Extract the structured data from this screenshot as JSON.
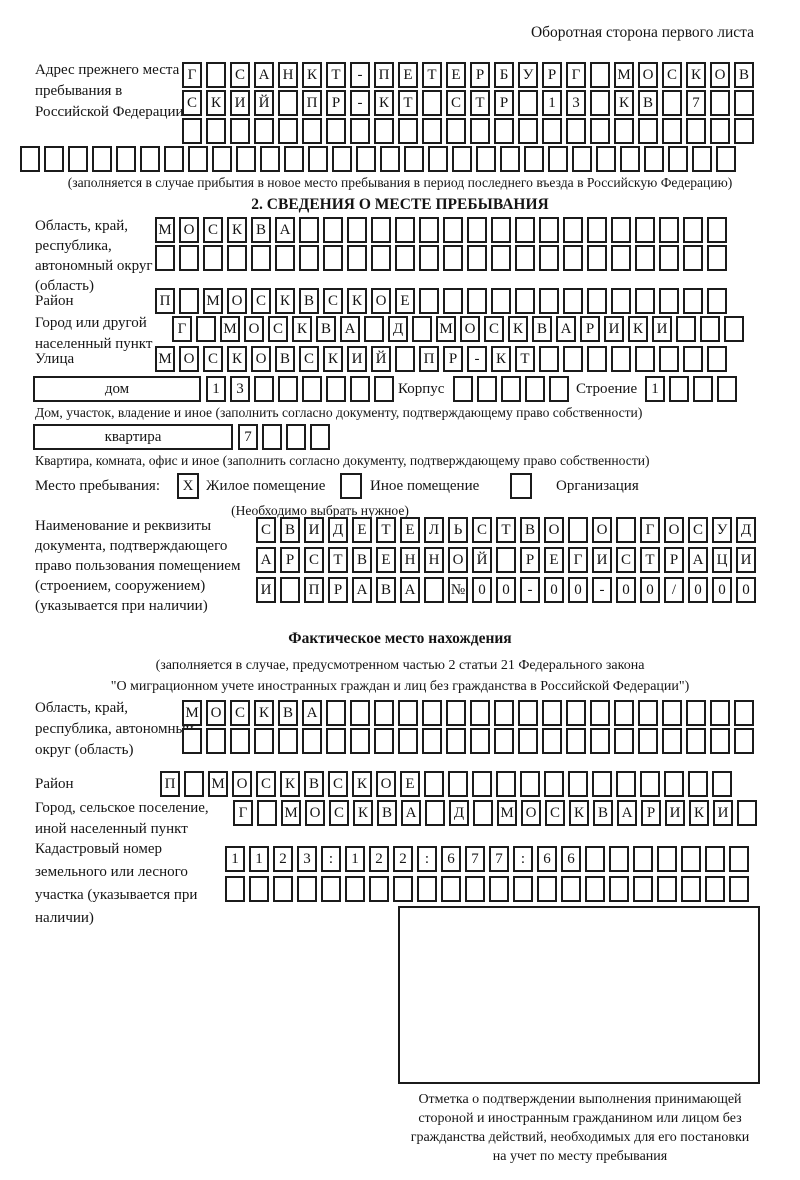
{
  "title": "Оборотная сторона первого листа",
  "prev_address": {
    "label": "Адрес прежнего места пребывания в Российской Федерации",
    "row1": "Г САНКТ-ПЕТЕРБУРГ МОСКОВ",
    "row2": "СКИЙ ПР-КТ СТР 13 КВ 7",
    "row3": "",
    "row4": "",
    "note": "(заполняется в случае прибытия в новое место пребывания в период последнего въезда в Российскую Федерацию)"
  },
  "section2": {
    "header": "2. СВЕДЕНИЯ О МЕСТЕ ПРЕБЫВАНИЯ",
    "oblast_label": "Область, край, республика, автономный округ (область)",
    "oblast_row1": "МОСКВА",
    "oblast_row2": "",
    "raion_label": "Район",
    "raion_row": "П МОСКВСКОЕ",
    "gorod_label": "Город или другой населенный пункт",
    "gorod_row": "Г МОСКВА Д МОСКВАРИКИ",
    "ulitsa_label": "Улица",
    "ulitsa_row": "МОСКОВСКИЙ ПР-КТ",
    "dom_label": "дом",
    "dom_row": "13",
    "korpus_label": "Корпус",
    "korpus_row": "",
    "stroenie_label": "Строение",
    "stroenie_row": "1",
    "dom_note": "Дом, участок, владение и иное (заполнить согласно документу, подтверждающему право собственности)",
    "kvartira_label": "квартира",
    "kvartira_row": "7",
    "kvartira_note": "Квартира, комната, офис и иное (заполнить согласно документу, подтверждающему право собственности)",
    "mesto_label": "Место пребывания:",
    "mesto_zhiloe": "Жилое помещение",
    "mesto_zhiloe_mark": "X",
    "mesto_inoe": "Иное помещение",
    "mesto_inoe_mark": "",
    "mesto_org": "Организация",
    "mesto_org_mark": "",
    "mesto_note": "(Необходимо выбрать нужное)",
    "doc_label": "Наименование и реквизиты документа, подтверждающего право пользования помещением (строением, сооружением) (указывается при наличии)",
    "doc_row1": "СВИДЕТЕЛЬСТВО О ГОСУД",
    "doc_row2": "АРСТВЕННОЙ РЕГИСТРАЦИ",
    "doc_row3": "И ПРАВА №00-00-00/000"
  },
  "fact": {
    "header": "Фактическое место нахождения",
    "note1": "(заполняется в случае, предусмотренном частью 2 статьи 21 Федерального закона",
    "note2": "\"О миграционном учете иностранных граждан и лиц без гражданства в Российской Федерации\")",
    "oblast_label": "Область, край, республика, автономный округ (область)",
    "oblast_row1": "МОСКВА",
    "oblast_row2": "",
    "raion_label": "Район",
    "raion_row": "П МОСКВСКОЕ",
    "gorod_label": "Город, сельское поселение, иной населенный пункт",
    "gorod_row": "Г МОСКВА Д МОСКВАРИКИ",
    "kadastr_label": "Кадастровый номер земельного или лесного участка (указывается при наличии)",
    "kadastr_row1": "1123:122:677:66",
    "kadastr_row2": "",
    "stamp_line1": "Отметка о подтверждении выполнения принимающей",
    "stamp_line2": "стороной и иностранным гражданином или лицом без",
    "stamp_line3": "гражданства действий, необходимых для его постановки",
    "stamp_line4": "на учет по месту пребывания"
  }
}
